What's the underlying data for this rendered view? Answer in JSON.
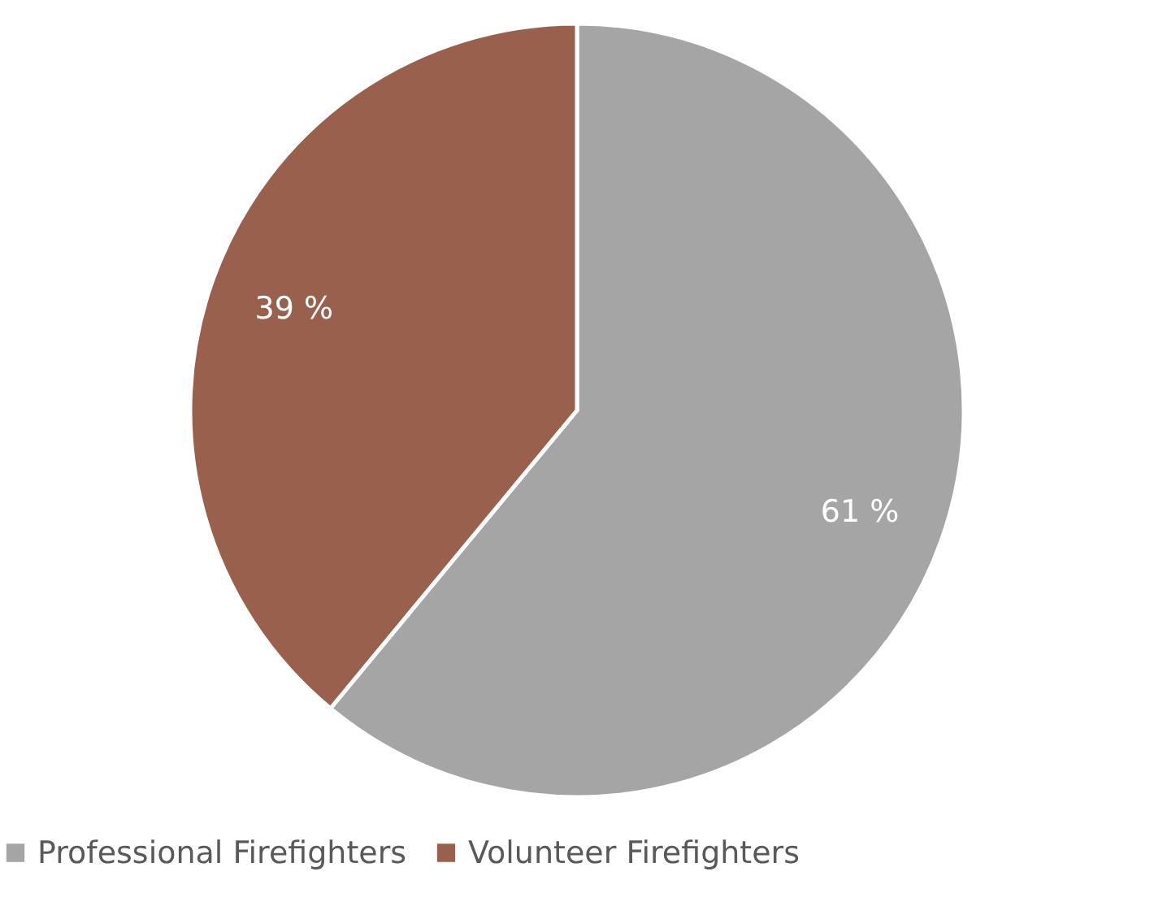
{
  "chart_data": {
    "type": "pie",
    "categories": [
      "Professional Firefighters",
      "Volunteer Firefighters"
    ],
    "values": [
      61,
      39
    ],
    "colors": [
      "#a5a5a5",
      "#99604e"
    ],
    "value_labels": [
      "61 %",
      "39 %"
    ],
    "legend": "bottom"
  }
}
